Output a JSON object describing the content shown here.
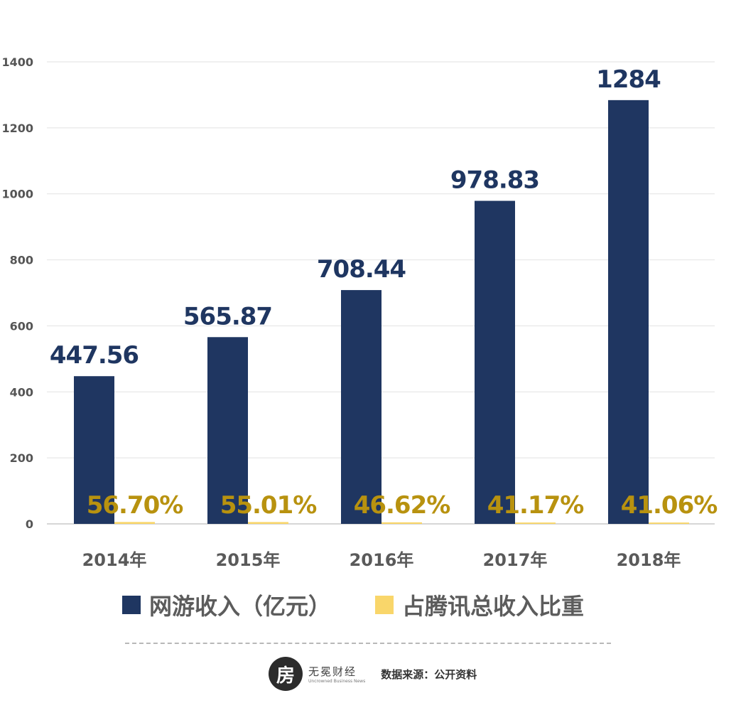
{
  "chart_data": {
    "type": "bar",
    "categories": [
      "2014年",
      "2015年",
      "2016年",
      "2017年",
      "2018年"
    ],
    "series": [
      {
        "name": "网游收入（亿元）",
        "values": [
          447.56,
          565.87,
          708.44,
          978.83,
          1284
        ],
        "labels": [
          "447.56",
          "565.87",
          "708.44",
          "978.83",
          "1284"
        ],
        "color": "#1f3661",
        "label_color": "#1f3661"
      },
      {
        "name": "占腾讯总收入比重",
        "values": [
          0.567,
          0.5501,
          0.4662,
          0.4117,
          0.4106
        ],
        "labels": [
          "56.70%",
          "55.01%",
          "46.62%",
          "41.17%",
          "41.06%"
        ],
        "color": "#f9d66a",
        "label_color": "#b8920f"
      }
    ],
    "yticks": [
      "0",
      "200",
      "400",
      "600",
      "800",
      "1000",
      "1200",
      "1400"
    ],
    "ylim": [
      0,
      1400
    ],
    "grid": true,
    "legend_position": "bottom"
  },
  "footer": {
    "logo_char": "房",
    "logo_cn": "无冕财经",
    "logo_en": "Uncrowned Business News",
    "source": "数据来源：公开资料"
  }
}
